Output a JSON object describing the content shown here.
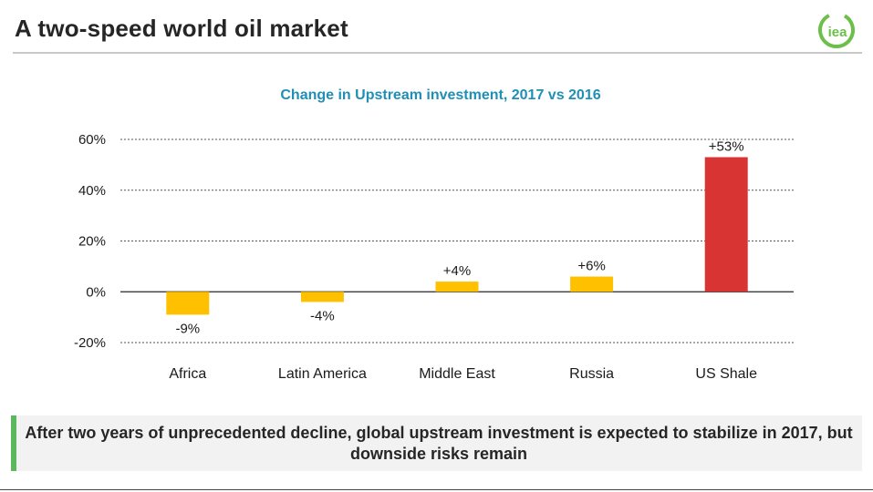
{
  "slide": {
    "title": "A two-speed world oil market",
    "logo_text": "iea",
    "callout": "After two years of unprecedented decline, global upstream investment is expected to stabilize in 2017, but downside risks remain"
  },
  "colors": {
    "accent_teal": "#1f8fb5",
    "bar_default": "#ffc000",
    "bar_highlight": "#d93434",
    "callout_bar": "#5cb85c",
    "logo_green": "#6cc04a"
  },
  "chart_data": {
    "type": "bar",
    "title": "Change in Upstream investment, 2017 vs 2016",
    "categories": [
      "Africa",
      "Latin America",
      "Middle East",
      "Russia",
      "US Shale"
    ],
    "values": [
      -9,
      -4,
      4,
      6,
      53
    ],
    "data_labels": [
      "-9%",
      "-4%",
      "+4%",
      "+6%",
      "+53%"
    ],
    "bar_colors": [
      "#ffc000",
      "#ffc000",
      "#ffc000",
      "#ffc000",
      "#d93434"
    ],
    "ylim": [
      -20,
      60
    ],
    "yticks": [
      60,
      40,
      20,
      0,
      -20
    ],
    "ytick_labels": [
      "60%",
      "40%",
      "20%",
      "0%",
      "-20%"
    ],
    "grid": "dotted horizontal",
    "xlabel": "",
    "ylabel": ""
  }
}
